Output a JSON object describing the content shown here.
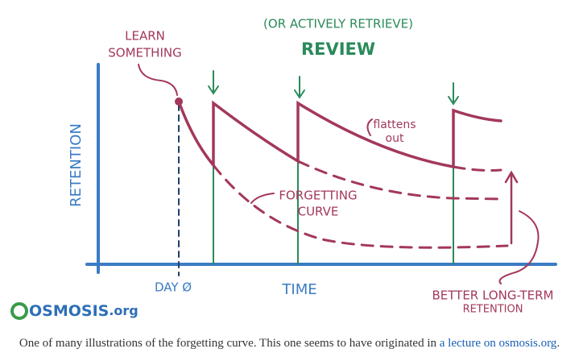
{
  "illustration": {
    "header": {
      "note": "(OR ACTIVELY RETRIEVE)",
      "title": "REVIEW"
    },
    "learn_label": [
      "LEARN",
      "SOMETHING"
    ],
    "y_axis_label": "RETENTION",
    "x_axis_label": "TIME",
    "origin_label": "DAY Ø",
    "flatten_note": [
      "flattens",
      "out"
    ],
    "forgetting_label": [
      "FORGETTING",
      "CURVE"
    ],
    "outcome_label": [
      "BETTER LONG-TERM",
      "RETENTION"
    ],
    "logo": {
      "name": "OSMOSIS",
      "suffix": ".org"
    }
  },
  "caption": {
    "text": "One of many illustrations of the forgetting curve. This one seems to have originated in",
    "link": "a lecture on osmosis.org",
    "end": "."
  }
}
